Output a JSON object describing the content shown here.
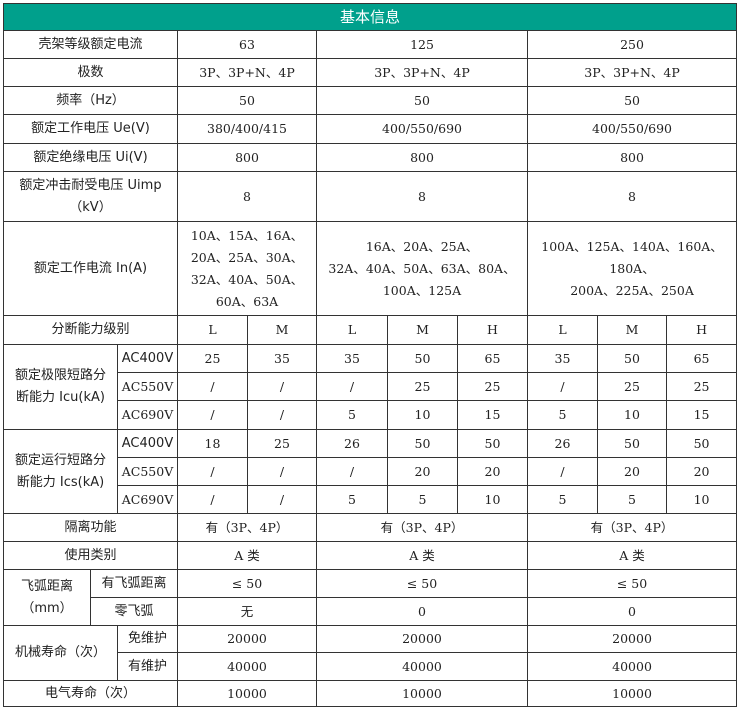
{
  "header_color": "#00a08c",
  "title": "基本信息",
  "rows": [
    [
      "壳架等级额定电流",
      "63",
      "125",
      "250"
    ],
    [
      "极数",
      "3P、3P+N、4P",
      "3P、3P+N、4P",
      "3P、3P+N、4P"
    ],
    [
      "频率（Hz）",
      "50",
      "50",
      "50"
    ],
    [
      "额定工作电压 Ue(V)",
      "380/400/415",
      "400/550/690",
      "400/550/690"
    ],
    [
      "额定绝缘电压 Ui(V)",
      "800",
      "800",
      "800"
    ],
    [
      "额定冲击耐受电压 Uimp\n（kV）",
      "8",
      "8",
      "8"
    ],
    [
      "额定工作电流 In(A)",
      "10A、15A、16A、\n20A、25A、30A、\n32A、40A、50A、\n60A、63A",
      "16A、20A、25A、\n32A、40A、50A、63A、80A、\n100A、125A",
      "100A、125A、140A、160A、180A、\n200A、225A、250A"
    ],
    [
      "分断能力级别",
      "L",
      "M",
      "L",
      "M",
      "H",
      "L",
      "M",
      "H"
    ],
    [
      "额定极限短路分\n断能力 Icu(kA)",
      "AC400V",
      "25",
      "35",
      "35",
      "50",
      "65",
      "35",
      "50",
      "65"
    ],
    [
      "AC550V",
      "/",
      "/",
      "/",
      "25",
      "25",
      "/",
      "25",
      "25"
    ],
    [
      "AC690V",
      "/",
      "/",
      "5",
      "10",
      "15",
      "5",
      "10",
      "15"
    ],
    [
      "额定运行短路分\n断能力 Ics(kA)",
      "AC400V",
      "18",
      "25",
      "26",
      "50",
      "50",
      "26",
      "50",
      "50"
    ],
    [
      "AC550V",
      "/",
      "/",
      "/",
      "20",
      "20",
      "/",
      "20",
      "20"
    ],
    [
      "AC690V",
      "/",
      "/",
      "5",
      "5",
      "10",
      "5",
      "5",
      "10"
    ],
    [
      "隔离功能",
      "有（3P、4P）",
      "有（3P、4P）",
      "有（3P、4P）"
    ],
    [
      "使用类别",
      "A 类",
      "A 类",
      "A 类"
    ],
    [
      "飞弧距离\n（mm）",
      "有飞弧距离",
      "≤ 50",
      "≤ 50",
      "≤ 50"
    ],
    [
      "零飞弧",
      "无",
      "0",
      "0"
    ],
    [
      "机械寿命（次）",
      "免维护",
      "20000",
      "20000",
      "20000"
    ],
    [
      "有维护",
      "40000",
      "40000",
      "40000"
    ],
    [
      "电气寿命（次）",
      "10000",
      "10000",
      "10000"
    ]
  ]
}
